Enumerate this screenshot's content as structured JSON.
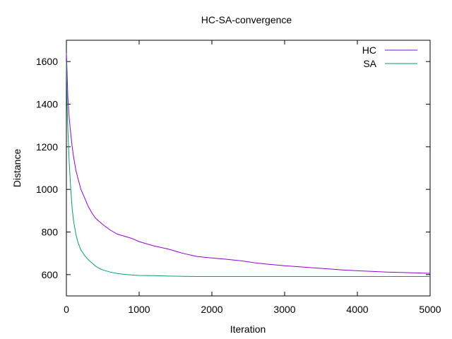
{
  "chart_data": {
    "type": "line",
    "title": "HC-SA-convergence",
    "xlabel": "Iteration",
    "ylabel": "Distance",
    "xlim": [
      0,
      5000
    ],
    "ylim": [
      500,
      1700
    ],
    "xticks": [
      0,
      1000,
      2000,
      3000,
      4000,
      5000
    ],
    "yticks": [
      600,
      800,
      1000,
      1200,
      1400,
      1600
    ],
    "grid": false,
    "legend_position": "top-right",
    "series": [
      {
        "name": "HC",
        "color": "#9400d3",
        "x": [
          0,
          10,
          20,
          40,
          60,
          80,
          100,
          130,
          160,
          200,
          250,
          300,
          350,
          400,
          450,
          500,
          600,
          700,
          800,
          900,
          1000,
          1200,
          1400,
          1600,
          1800,
          2000,
          2200,
          2400,
          2600,
          2800,
          3000,
          3200,
          3400,
          3600,
          3800,
          4000,
          4200,
          4400,
          4600,
          4800,
          5000
        ],
        "y": [
          1640,
          1550,
          1430,
          1330,
          1260,
          1200,
          1150,
          1090,
          1050,
          1000,
          960,
          920,
          890,
          865,
          850,
          835,
          810,
          790,
          780,
          770,
          755,
          735,
          720,
          700,
          685,
          678,
          672,
          665,
          655,
          648,
          642,
          637,
          632,
          627,
          622,
          618,
          615,
          612,
          610,
          608,
          606
        ]
      },
      {
        "name": "SA",
        "color": "#009e73",
        "x": [
          0,
          10,
          20,
          40,
          60,
          80,
          100,
          130,
          160,
          200,
          250,
          300,
          350,
          400,
          450,
          500,
          600,
          700,
          800,
          900,
          1000,
          1200,
          1400,
          1600,
          1800,
          2000,
          2500,
          3000,
          3500,
          4000,
          4500,
          5000
        ],
        "y": [
          1600,
          1400,
          1280,
          1120,
          1000,
          910,
          850,
          790,
          750,
          715,
          690,
          670,
          655,
          640,
          630,
          622,
          612,
          605,
          601,
          598,
          596,
          595,
          593,
          592,
          591,
          591,
          591,
          591,
          591,
          591,
          591,
          591
        ]
      }
    ]
  }
}
